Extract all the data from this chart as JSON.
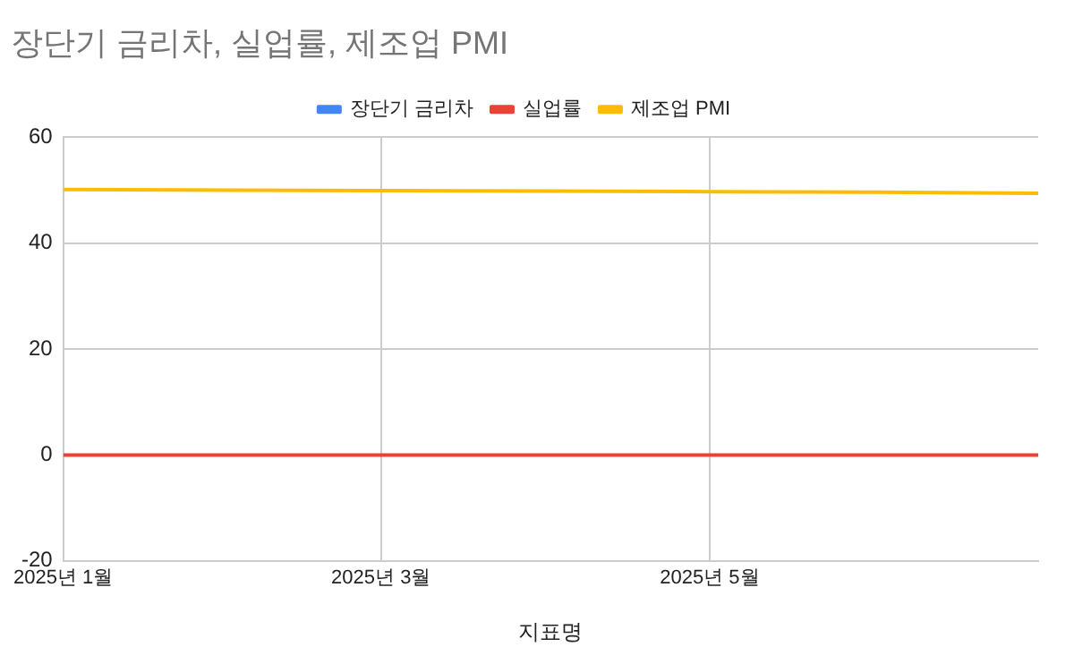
{
  "chart_data": {
    "type": "line",
    "title": "장단기 금리차, 실업률, 제조업 PMI",
    "xlabel": "지표명",
    "x": [
      "2025-01",
      "2025-02",
      "2025-03",
      "2025-04",
      "2025-05",
      "2025-06",
      "2025-07"
    ],
    "series": [
      {
        "name": "장단기 금리차",
        "color": "#4285f4",
        "values": [
          null,
          null,
          null,
          null,
          null,
          null,
          null
        ]
      },
      {
        "name": "실업률",
        "color": "#ea4335",
        "values": [
          0,
          0,
          0,
          0,
          0,
          0,
          0
        ]
      },
      {
        "name": "제조업 PMI",
        "color": "#fbbc04",
        "values": [
          50.1,
          50,
          49.9,
          49.8,
          49.7,
          49.6,
          49.4
        ]
      }
    ],
    "xlim": [
      "2025-01",
      "2025-07"
    ],
    "xticks": [
      {
        "value": "2025-01",
        "label": "2025년 1월"
      },
      {
        "value": "2025-03",
        "label": "2025년 3월"
      },
      {
        "value": "2025-05",
        "label": "2025년 5월"
      }
    ],
    "ylim": [
      -20,
      60
    ],
    "yticks": [
      -20,
      0,
      20,
      40,
      60
    ],
    "grid": true,
    "legend": "top",
    "marker": "none",
    "line_style": "solid"
  }
}
